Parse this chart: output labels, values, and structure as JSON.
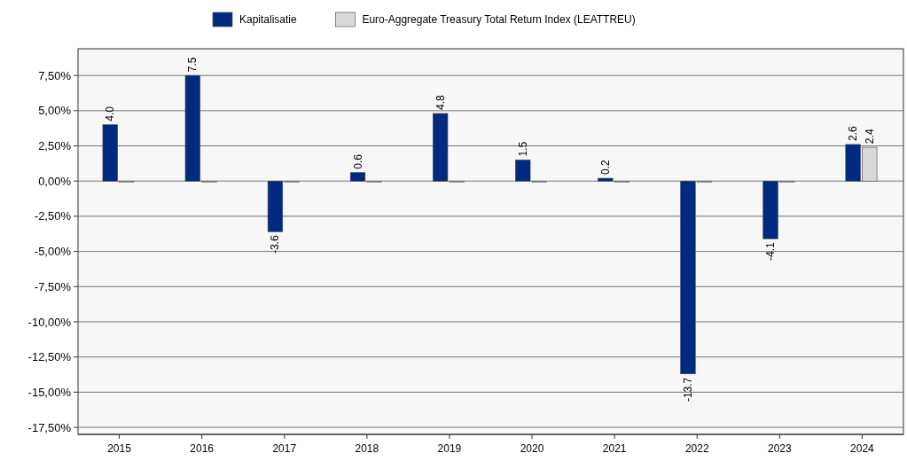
{
  "chart_data": {
    "type": "bar",
    "categories": [
      "2015",
      "2016",
      "2017",
      "2018",
      "2019",
      "2020",
      "2021",
      "2022",
      "2023",
      "2024"
    ],
    "series": [
      {
        "name": "Kapitalisatie",
        "color": "#002a80",
        "values": [
          4.0,
          7.5,
          -3.6,
          0.6,
          4.8,
          1.5,
          0.2,
          -13.7,
          -4.1,
          2.6
        ],
        "value_labels": [
          "4.0",
          "7.5",
          "-3.6",
          "0.6",
          "4.8",
          "1.5",
          "0.2",
          "-13.7",
          "-4.1",
          "2.6"
        ]
      },
      {
        "name": "Euro-Aggregate Treasury Total Return Index (LEATTREU)",
        "color": "#d9d9d9",
        "values": [
          0,
          0,
          0,
          0,
          0,
          0,
          0,
          0,
          0,
          2.4
        ],
        "value_labels": [
          null,
          null,
          null,
          null,
          null,
          null,
          null,
          null,
          null,
          "2.4"
        ]
      }
    ],
    "ylim": [
      -18,
      9.4
    ],
    "yticks": [
      {
        "value": -17.5,
        "label": "-17,50%"
      },
      {
        "value": -15,
        "label": "-15,00%"
      },
      {
        "value": -12.5,
        "label": "-12,50%"
      },
      {
        "value": -10,
        "label": "-10,00%"
      },
      {
        "value": -7.5,
        "label": "-7,50%"
      },
      {
        "value": -5,
        "label": "-5,00%"
      },
      {
        "value": -2.5,
        "label": "-2,50%"
      },
      {
        "value": 0,
        "label": "0,00%"
      },
      {
        "value": 2.5,
        "label": "2,50%"
      },
      {
        "value": 5,
        "label": "5,00%"
      },
      {
        "value": 7.5,
        "label": "7,50%"
      }
    ],
    "grid": "y",
    "legend": "top"
  }
}
